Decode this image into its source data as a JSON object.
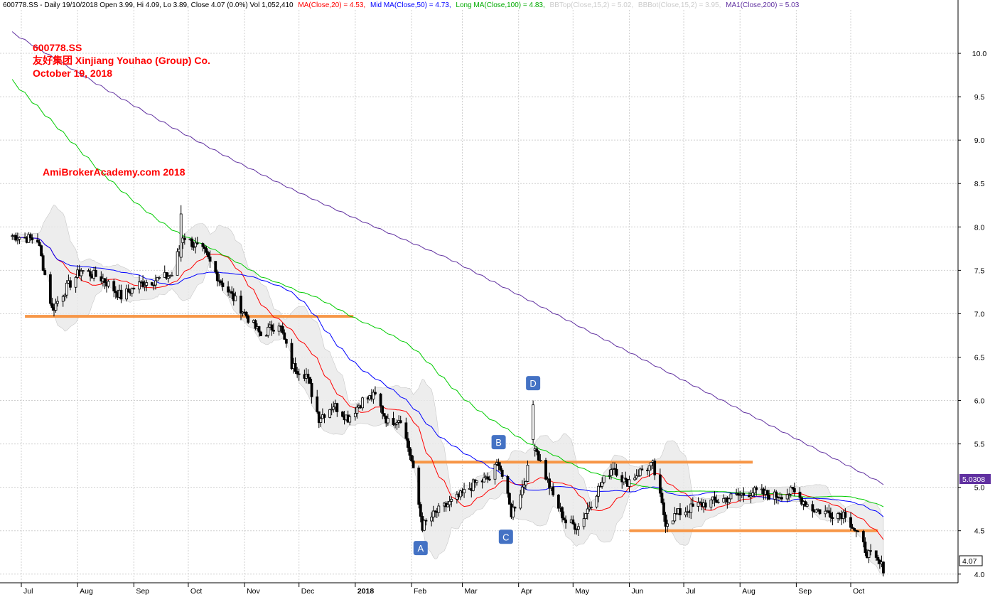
{
  "header": {
    "symbol_info": "600778.SS - Daily 19/10/2018 Open 3.99, Hi 4.09, Lo 3.89, Close 4.07 (0.0%) Vol 1,052,410",
    "ma20": "MA(Close,20) = 4.53,",
    "ma50": "Mid MA(Close,50) = 4.73,",
    "ma100": "Long MA(Close,100) = 4.83,",
    "bbtop": "BBTop(Close,15,2) = 5.02,",
    "bbbot": "BBBot(Close,15,2) = 3.95,",
    "ma200": "MA1(Close,200) = 5.03"
  },
  "title_block": {
    "line1": "600778.SS",
    "line2": "友好集团  Xinjiang Youhao (Group) Co.",
    "line3": "October 19, 2018"
  },
  "watermark": "AmiBrokerAcademy.com  2018",
  "price_tags": {
    "ma200_tag": "5.0308",
    "close_tag": "4.07"
  },
  "colors": {
    "ma20": "#ff0000",
    "ma50": "#0000ff",
    "ma100": "#00cc00",
    "ma200": "#6030a0",
    "support": "#f79646",
    "label_box": "#4472c4",
    "band": "#e8e8e8",
    "title_text": "#ff0000",
    "ma200_tag_bg": "#6030a0"
  },
  "chart_data": {
    "type": "candlestick",
    "ylim": [
      3.9,
      10.5
    ],
    "y_ticks": [
      "4.0",
      "4.5",
      "5.0",
      "5.5",
      "6.0",
      "6.5",
      "7.0",
      "7.5",
      "8.0",
      "8.5",
      "9.0",
      "9.5",
      "10.0"
    ],
    "x_ticks": [
      "Jul",
      "Aug",
      "Sep",
      "Oct",
      "Nov",
      "Dec",
      "2018",
      "Feb",
      "Mar",
      "Apr",
      "May",
      "Jun",
      "Jul",
      "Aug",
      "Sep",
      "Oct"
    ],
    "grid": true,
    "close_points": [
      {
        "d": "2017-06-26",
        "v": 7.9
      },
      {
        "d": "2017-07-10",
        "v": 7.85
      },
      {
        "d": "2017-07-18",
        "v": 7.05
      },
      {
        "d": "2017-07-26",
        "v": 7.3
      },
      {
        "d": "2017-08-03",
        "v": 7.5
      },
      {
        "d": "2017-08-15",
        "v": 7.4
      },
      {
        "d": "2017-08-25",
        "v": 7.2
      },
      {
        "d": "2017-09-05",
        "v": 7.35
      },
      {
        "d": "2017-09-15",
        "v": 7.4
      },
      {
        "d": "2017-09-22",
        "v": 7.45
      },
      {
        "d": "2017-09-28",
        "v": 7.9
      },
      {
        "d": "2017-10-10",
        "v": 7.7
      },
      {
        "d": "2017-10-18",
        "v": 7.4
      },
      {
        "d": "2017-10-27",
        "v": 7.15
      },
      {
        "d": "2017-11-03",
        "v": 6.95
      },
      {
        "d": "2017-11-10",
        "v": 6.75
      },
      {
        "d": "2017-11-20",
        "v": 6.9
      },
      {
        "d": "2017-11-27",
        "v": 6.4
      },
      {
        "d": "2017-12-05",
        "v": 6.3
      },
      {
        "d": "2017-12-12",
        "v": 5.8
      },
      {
        "d": "2017-12-20",
        "v": 5.95
      },
      {
        "d": "2017-12-28",
        "v": 5.8
      },
      {
        "d": "2018-01-05",
        "v": 6.0
      },
      {
        "d": "2018-01-12",
        "v": 6.05
      },
      {
        "d": "2018-01-19",
        "v": 5.75
      },
      {
        "d": "2018-01-26",
        "v": 5.8
      },
      {
        "d": "2018-02-01",
        "v": 5.3
      },
      {
        "d": "2018-02-07",
        "v": 4.55
      },
      {
        "d": "2018-02-14",
        "v": 4.7
      },
      {
        "d": "2018-02-28",
        "v": 4.9
      },
      {
        "d": "2018-03-08",
        "v": 5.05
      },
      {
        "d": "2018-03-16",
        "v": 5.1
      },
      {
        "d": "2018-03-21",
        "v": 5.3
      },
      {
        "d": "2018-03-28",
        "v": 4.7
      },
      {
        "d": "2018-04-04",
        "v": 5.05
      },
      {
        "d": "2018-04-10",
        "v": 5.5
      },
      {
        "d": "2018-04-12",
        "v": 5.35
      },
      {
        "d": "2018-04-20",
        "v": 4.9
      },
      {
        "d": "2018-04-27",
        "v": 4.6
      },
      {
        "d": "2018-05-04",
        "v": 4.55
      },
      {
        "d": "2018-05-14",
        "v": 4.95
      },
      {
        "d": "2018-05-23",
        "v": 5.25
      },
      {
        "d": "2018-05-30",
        "v": 5.05
      },
      {
        "d": "2018-06-08",
        "v": 5.2
      },
      {
        "d": "2018-06-14",
        "v": 5.25
      },
      {
        "d": "2018-06-21",
        "v": 4.6
      },
      {
        "d": "2018-06-28",
        "v": 4.7
      },
      {
        "d": "2018-07-10",
        "v": 4.8
      },
      {
        "d": "2018-07-20",
        "v": 4.85
      },
      {
        "d": "2018-07-30",
        "v": 4.9
      },
      {
        "d": "2018-08-08",
        "v": 4.95
      },
      {
        "d": "2018-08-20",
        "v": 4.9
      },
      {
        "d": "2018-08-30",
        "v": 4.95
      },
      {
        "d": "2018-09-10",
        "v": 4.75
      },
      {
        "d": "2018-09-20",
        "v": 4.7
      },
      {
        "d": "2018-09-28",
        "v": 4.7
      },
      {
        "d": "2018-10-10",
        "v": 4.25
      },
      {
        "d": "2018-10-19",
        "v": 4.07
      }
    ],
    "extra_spikes": [
      {
        "d": "2017-09-27",
        "o": 7.65,
        "h": 8.25,
        "l": 7.6,
        "c": 8.15
      },
      {
        "d": "2018-04-09",
        "o": 5.55,
        "h": 6.0,
        "l": 5.5,
        "c": 5.95
      }
    ],
    "support_lines": [
      {
        "start": "2017-07-03",
        "end": "2017-12-31",
        "v": 6.97
      },
      {
        "start": "2018-02-01",
        "end": "2018-08-08",
        "v": 5.29
      },
      {
        "start": "2018-06-01",
        "end": "2018-10-16",
        "v": 4.5
      }
    ],
    "point_labels": [
      {
        "text": "A",
        "d": "2018-02-06",
        "v": 4.3
      },
      {
        "text": "B",
        "d": "2018-03-21",
        "v": 5.52
      },
      {
        "text": "C",
        "d": "2018-03-25",
        "v": 4.43
      },
      {
        "text": "D",
        "d": "2018-04-09",
        "v": 6.2
      }
    ]
  }
}
